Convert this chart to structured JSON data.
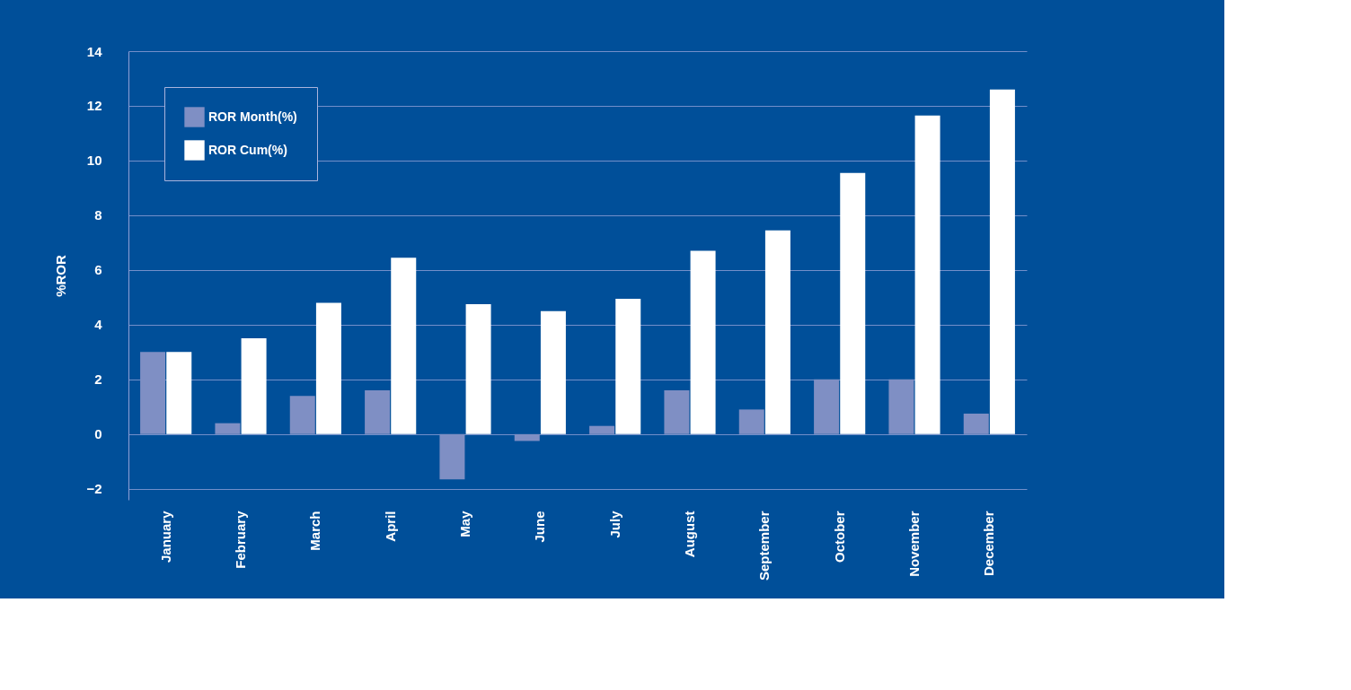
{
  "chart_data": {
    "type": "bar",
    "ylabel": "%ROR",
    "categories": [
      "January",
      "February",
      "March",
      "April",
      "May",
      "June",
      "July",
      "August",
      "September",
      "October",
      "November",
      "December"
    ],
    "series": [
      {
        "name": "ROR Month(%)",
        "color": "#7f8fc4",
        "values": [
          3.0,
          0.4,
          1.4,
          1.6,
          -1.65,
          -0.25,
          0.3,
          1.6,
          0.9,
          2.0,
          2.0,
          0.75
        ]
      },
      {
        "name": "ROR Cum(%)",
        "color": "#ffffff",
        "values": [
          3.0,
          3.5,
          4.8,
          6.45,
          4.75,
          4.5,
          4.95,
          6.7,
          7.45,
          9.55,
          11.65,
          12.6
        ]
      }
    ],
    "ylim": [
      -2.4,
      14
    ],
    "yticks": [
      -2,
      0,
      2,
      4,
      6,
      8,
      10,
      12,
      14
    ],
    "grid": "y",
    "legend": "top left"
  }
}
